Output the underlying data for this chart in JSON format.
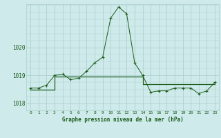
{
  "title": "Graphe pression niveau de la mer (hPa)",
  "background_color": "#ceeaea",
  "grid_color": "#aed0d0",
  "line_color": "#1a5c1a",
  "x_labels": [
    "0",
    "1",
    "2",
    "3",
    "4",
    "5",
    "6",
    "7",
    "8",
    "9",
    "10",
    "11",
    "12",
    "13",
    "14",
    "15",
    "16",
    "17",
    "18",
    "19",
    "20",
    "21",
    "22",
    "23"
  ],
  "ylim": [
    1017.75,
    1021.55
  ],
  "yticks": [
    1018,
    1019,
    1020
  ],
  "series1_x": [
    0,
    1,
    2,
    3,
    4,
    5,
    6,
    7,
    8,
    9,
    10,
    11,
    12,
    13,
    14,
    15,
    16,
    17,
    18,
    19,
    20,
    21,
    22,
    23
  ],
  "series1_y": [
    1018.55,
    1018.55,
    1018.65,
    1019.0,
    1019.05,
    1018.85,
    1018.9,
    1019.15,
    1019.45,
    1019.65,
    1021.05,
    1021.45,
    1021.2,
    1019.45,
    1019.0,
    1018.4,
    1018.45,
    1018.45,
    1018.55,
    1018.55,
    1018.55,
    1018.35,
    1018.45,
    1018.75
  ],
  "series2_x": [
    0,
    1,
    2,
    3,
    4,
    5,
    6,
    7,
    8,
    9,
    10,
    11,
    12,
    13,
    14,
    15,
    16,
    17,
    18,
    19,
    20,
    21,
    22,
    23
  ],
  "series2_y": [
    1018.5,
    1018.5,
    1018.5,
    1018.95,
    1018.95,
    1018.95,
    1018.95,
    1018.95,
    1018.95,
    1018.95,
    1018.95,
    1018.95,
    1018.95,
    1018.95,
    1018.68,
    1018.68,
    1018.68,
    1018.68,
    1018.68,
    1018.68,
    1018.68,
    1018.68,
    1018.68,
    1018.75
  ]
}
